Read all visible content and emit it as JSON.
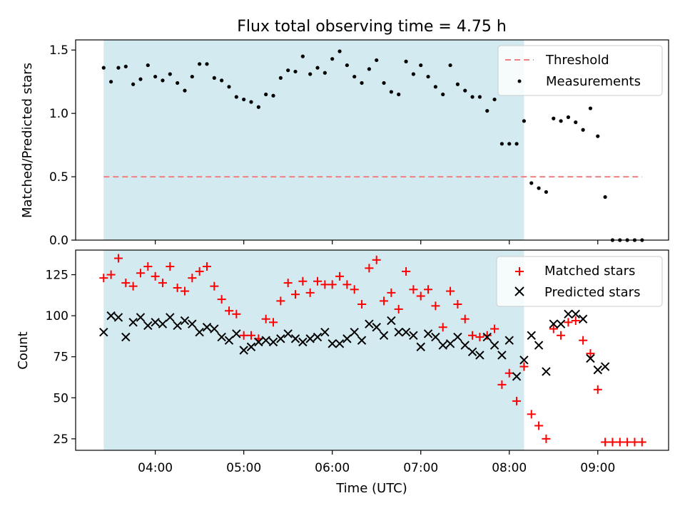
{
  "figure": {
    "title": "Flux total observing time = 4.75 h"
  },
  "chart_data": [
    {
      "type": "scatter",
      "ylabel": "Matched/Predicted stars",
      "ylim": [
        0,
        1.58
      ],
      "yticks": [
        0.0,
        0.5,
        1.0,
        1.5
      ],
      "ytick_labels": [
        "0.0",
        "0.5",
        "1.0",
        "1.5"
      ],
      "legend_position": "top-right",
      "shaded_window": {
        "start": "03:25",
        "end": "08:10",
        "color": "#d3eaf1"
      },
      "threshold": {
        "name": "Threshold",
        "value": 0.5,
        "start": "03:25",
        "end": "09:30",
        "color": "#f08080"
      },
      "series": [
        {
          "name": "Measurements",
          "color": "#000000",
          "marker": "dot",
          "x": [
            "03:25",
            "03:30",
            "03:35",
            "03:40",
            "03:45",
            "03:50",
            "03:55",
            "04:00",
            "04:05",
            "04:10",
            "04:15",
            "04:20",
            "04:25",
            "04:30",
            "04:35",
            "04:40",
            "04:45",
            "04:50",
            "04:55",
            "05:00",
            "05:05",
            "05:10",
            "05:15",
            "05:20",
            "05:25",
            "05:30",
            "05:35",
            "05:40",
            "05:45",
            "05:50",
            "05:55",
            "06:00",
            "06:05",
            "06:10",
            "06:15",
            "06:20",
            "06:25",
            "06:30",
            "06:35",
            "06:40",
            "06:45",
            "06:50",
            "06:55",
            "07:00",
            "07:05",
            "07:10",
            "07:15",
            "07:20",
            "07:25",
            "07:30",
            "07:35",
            "07:40",
            "07:45",
            "07:50",
            "07:55",
            "08:00",
            "08:05",
            "08:10",
            "08:15",
            "08:20",
            "08:25",
            "08:30",
            "08:35",
            "08:40",
            "08:45",
            "08:50",
            "08:55",
            "09:00",
            "09:05",
            "09:10",
            "09:15",
            "09:20",
            "09:25",
            "09:30"
          ],
          "y": [
            1.36,
            1.25,
            1.36,
            1.37,
            1.23,
            1.27,
            1.38,
            1.29,
            1.26,
            1.31,
            1.24,
            1.18,
            1.29,
            1.39,
            1.39,
            1.28,
            1.26,
            1.21,
            1.13,
            1.11,
            1.09,
            1.05,
            1.15,
            1.14,
            1.28,
            1.34,
            1.33,
            1.45,
            1.31,
            1.36,
            1.32,
            1.43,
            1.49,
            1.38,
            1.29,
            1.24,
            1.35,
            1.42,
            1.24,
            1.17,
            1.15,
            1.41,
            1.31,
            1.38,
            1.29,
            1.21,
            1.15,
            1.38,
            1.23,
            1.18,
            1.13,
            1.13,
            1.02,
            1.11,
            0.76,
            0.76,
            0.76,
            0.94,
            0.45,
            0.41,
            0.38,
            0.96,
            0.94,
            0.97,
            0.93,
            0.87,
            1.04,
            0.82,
            0.34,
            0.0,
            0.0,
            0.0,
            0.0,
            0.0
          ]
        }
      ]
    },
    {
      "type": "scatter",
      "xlabel": "Time (UTC)",
      "ylabel": "Count",
      "ylim": [
        18,
        140
      ],
      "yticks": [
        25,
        50,
        75,
        100,
        125
      ],
      "ytick_labels": [
        "25",
        "50",
        "75",
        "100",
        "125"
      ],
      "xticks": [
        "04:00",
        "05:00",
        "06:00",
        "07:00",
        "08:00",
        "09:00"
      ],
      "legend_position": "top-right",
      "shaded_window": {
        "start": "03:25",
        "end": "08:10",
        "color": "#d3eaf1"
      },
      "series": [
        {
          "name": "Matched stars",
          "color": "#ff0000",
          "marker": "plus",
          "x": [
            "03:25",
            "03:30",
            "03:35",
            "03:40",
            "03:45",
            "03:50",
            "03:55",
            "04:00",
            "04:05",
            "04:10",
            "04:15",
            "04:20",
            "04:25",
            "04:30",
            "04:35",
            "04:40",
            "04:45",
            "04:50",
            "04:55",
            "05:00",
            "05:05",
            "05:10",
            "05:15",
            "05:20",
            "05:25",
            "05:30",
            "05:35",
            "05:40",
            "05:45",
            "05:50",
            "05:55",
            "06:00",
            "06:05",
            "06:10",
            "06:15",
            "06:20",
            "06:25",
            "06:30",
            "06:35",
            "06:40",
            "06:45",
            "06:50",
            "06:55",
            "07:00",
            "07:05",
            "07:10",
            "07:15",
            "07:20",
            "07:25",
            "07:30",
            "07:35",
            "07:40",
            "07:45",
            "07:50",
            "07:55",
            "08:00",
            "08:05",
            "08:10",
            "08:15",
            "08:20",
            "08:25",
            "08:30",
            "08:35",
            "08:40",
            "08:45",
            "08:50",
            "08:55",
            "09:00",
            "09:05",
            "09:10",
            "09:15",
            "09:20",
            "09:25",
            "09:30"
          ],
          "y": [
            123,
            125,
            135,
            120,
            118,
            126,
            130,
            124,
            120,
            130,
            117,
            115,
            123,
            127,
            130,
            118,
            110,
            103,
            101,
            88,
            88,
            86,
            98,
            96,
            109,
            120,
            113,
            121,
            114,
            121,
            119,
            119,
            124,
            119,
            116,
            107,
            129,
            134,
            109,
            114,
            104,
            127,
            116,
            112,
            116,
            106,
            93,
            115,
            107,
            98,
            88,
            87,
            88,
            92,
            58,
            65,
            48,
            69,
            40,
            33,
            25,
            92,
            88,
            96,
            97,
            85,
            77,
            55,
            23,
            23,
            23,
            23,
            23,
            23
          ]
        },
        {
          "name": "Predicted stars",
          "color": "#000000",
          "marker": "x",
          "x": [
            "03:25",
            "03:30",
            "03:35",
            "03:40",
            "03:45",
            "03:50",
            "03:55",
            "04:00",
            "04:05",
            "04:10",
            "04:15",
            "04:20",
            "04:25",
            "04:30",
            "04:35",
            "04:40",
            "04:45",
            "04:50",
            "04:55",
            "05:00",
            "05:05",
            "05:10",
            "05:15",
            "05:20",
            "05:25",
            "05:30",
            "05:35",
            "05:40",
            "05:45",
            "05:50",
            "05:55",
            "06:00",
            "06:05",
            "06:10",
            "06:15",
            "06:20",
            "06:25",
            "06:30",
            "06:35",
            "06:40",
            "06:45",
            "06:50",
            "06:55",
            "07:00",
            "07:05",
            "07:10",
            "07:15",
            "07:20",
            "07:25",
            "07:30",
            "07:35",
            "07:40",
            "07:45",
            "07:50",
            "07:55",
            "08:00",
            "08:05",
            "08:10",
            "08:15",
            "08:20",
            "08:25",
            "08:30",
            "08:35",
            "08:40",
            "08:45",
            "08:50",
            "08:55",
            "09:00",
            "09:05"
          ],
          "y": [
            90,
            100,
            99,
            87,
            96,
            99,
            94,
            96,
            95,
            99,
            94,
            97,
            95,
            90,
            93,
            92,
            87,
            85,
            89,
            79,
            81,
            84,
            85,
            84,
            86,
            89,
            86,
            84,
            86,
            87,
            90,
            83,
            83,
            86,
            90,
            85,
            95,
            93,
            88,
            97,
            90,
            90,
            88,
            81,
            89,
            87,
            82,
            83,
            87,
            82,
            78,
            76,
            87,
            82,
            76,
            85,
            63,
            73,
            88,
            82,
            66,
            95,
            95,
            101,
            101,
            98,
            74,
            67,
            69
          ]
        }
      ]
    }
  ]
}
